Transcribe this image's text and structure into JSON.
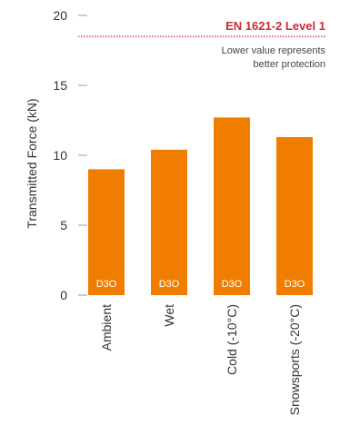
{
  "chart_data": {
    "type": "bar",
    "title": "",
    "xlabel": "",
    "ylabel": "Transmitted Force (kN)",
    "ylim": [
      0,
      20
    ],
    "yticks": [
      0,
      5,
      10,
      15,
      20
    ],
    "grid": false,
    "categories": [
      "Ambient",
      "Wet",
      "Cold (-10°C)",
      "Snowsports (-20°C)"
    ],
    "values": [
      9.0,
      10.4,
      12.7,
      11.3
    ],
    "bar_labels": [
      "D3O",
      "D3O",
      "D3O",
      "D3O"
    ],
    "reference_line": {
      "value": 18.5,
      "label": "EN 1621-2 Level 1",
      "style": "dotted"
    },
    "note_lines": [
      "Lower value represents",
      "better protection"
    ],
    "colors": {
      "bar": "#f07d00",
      "reference": "#cc2a36",
      "axis": "#999999",
      "text": "#333333"
    }
  }
}
